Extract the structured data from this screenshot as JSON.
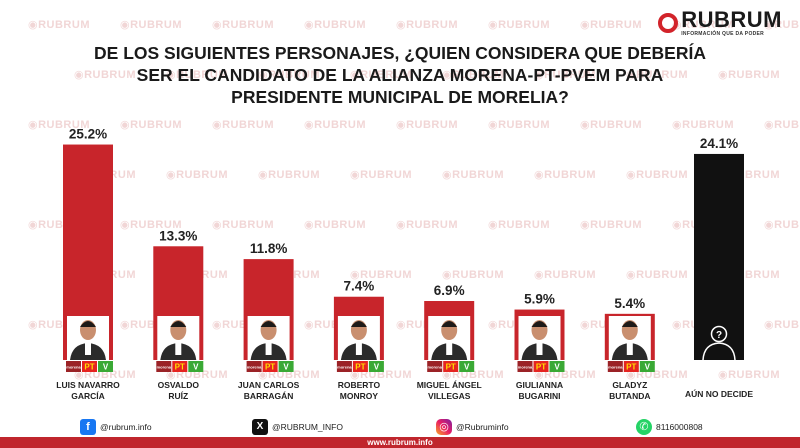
{
  "brand": {
    "name": "RUBRUM",
    "tagline": "INFORMACIÓN QUE DA PODER",
    "watermark": "RUBRUM"
  },
  "title_lines": [
    "DE LOS SIGUIENTES PERSONAJES, ¿QUIEN CONSIDERA QUE DEBERÍA",
    "SER EL CANDIDATO DE LA ALIANZA MORENA-PT-PVEM PARA",
    "PRESIDENTE MUNICIPAL DE MORELIA?"
  ],
  "party_badges": [
    "morena",
    "PT",
    "V"
  ],
  "colors": {
    "bar": "#c8252b",
    "undecided_bar": "#111111",
    "footer": "#c0262d",
    "morena": "#9b2226",
    "pt": "#e52421",
    "pvem": "#3aa935"
  },
  "chart_data": {
    "type": "bar",
    "categories": [
      [
        "LUIS NAVARRO",
        "GARCÍA"
      ],
      [
        "OSVALDO",
        "RUÍZ"
      ],
      [
        "JUAN CARLOS",
        "BARRAGÁN"
      ],
      [
        "ROBERTO",
        "MONROY"
      ],
      [
        "MIGUEL ÁNGEL",
        "VILLEGAS"
      ],
      [
        "GIULIANNA",
        "BUGARINI"
      ],
      [
        "GLADYZ",
        "BUTANDA"
      ],
      [
        "AÚN NO DECIDE"
      ]
    ],
    "values": [
      25.2,
      13.3,
      11.8,
      7.4,
      6.9,
      5.9,
      5.4,
      24.1
    ],
    "value_labels": [
      "25.2%",
      "13.3%",
      "11.8%",
      "7.4%",
      "6.9%",
      "5.9%",
      "5.4%",
      "24.1%"
    ],
    "undecided_index": 7,
    "undecided_symbol": "?"
  },
  "footer": {
    "facebook": "@rubrum.info",
    "x": "@RUBRUM_INFO",
    "instagram": "@Rubruminfo",
    "whatsapp": "8116000808",
    "website": "www.rubrum.info"
  }
}
